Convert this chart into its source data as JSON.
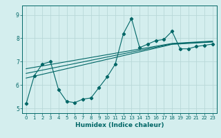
{
  "title": "",
  "xlabel": "Humidex (Indice chaleur)",
  "background_color": "#d4eeee",
  "grid_color": "#b8d8d8",
  "line_color": "#006666",
  "xlim": [
    -0.5,
    23.5
  ],
  "ylim": [
    4.8,
    9.4
  ],
  "yticks": [
    5,
    6,
    7,
    8,
    9
  ],
  "xticks": [
    0,
    1,
    2,
    3,
    4,
    5,
    6,
    7,
    8,
    9,
    10,
    11,
    12,
    13,
    14,
    15,
    16,
    17,
    18,
    19,
    20,
    21,
    22,
    23
  ],
  "main_series": [
    5.2,
    6.4,
    6.9,
    7.0,
    5.8,
    5.3,
    5.25,
    5.4,
    5.45,
    5.9,
    6.35,
    6.9,
    8.2,
    8.85,
    7.6,
    7.75,
    7.9,
    7.95,
    8.3,
    7.55,
    7.55,
    7.65,
    7.7,
    7.75
  ],
  "trend1": [
    6.3,
    6.38,
    6.46,
    6.54,
    6.62,
    6.7,
    6.78,
    6.86,
    6.94,
    7.02,
    7.1,
    7.18,
    7.26,
    7.34,
    7.42,
    7.5,
    7.58,
    7.66,
    7.74,
    7.76,
    7.78,
    7.8,
    7.82,
    7.84
  ],
  "trend2": [
    6.5,
    6.57,
    6.64,
    6.71,
    6.78,
    6.85,
    6.92,
    6.99,
    7.06,
    7.13,
    7.2,
    7.27,
    7.34,
    7.41,
    7.48,
    7.55,
    7.62,
    7.69,
    7.76,
    7.78,
    7.8,
    7.82,
    7.84,
    7.86
  ],
  "trend3": [
    6.7,
    6.76,
    6.82,
    6.88,
    6.94,
    7.0,
    7.06,
    7.12,
    7.18,
    7.24,
    7.3,
    7.36,
    7.42,
    7.48,
    7.54,
    7.6,
    7.66,
    7.72,
    7.78,
    7.8,
    7.82,
    7.84,
    7.86,
    7.88
  ]
}
